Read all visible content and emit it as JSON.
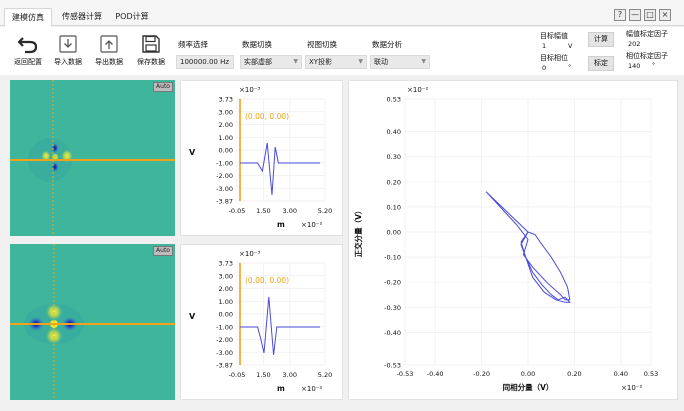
{
  "tabs": [
    {
      "label": "建模仿真",
      "active": true
    },
    {
      "label": "传感器计算",
      "active": false
    },
    {
      "label": "POD计算",
      "active": false
    }
  ],
  "window_buttons": {
    "help": "?",
    "minimize": "—",
    "maximize": "□",
    "close": "×"
  },
  "toolbar": {
    "buttons": [
      {
        "label": "返回配置",
        "icon": "back-arrow-icon"
      },
      {
        "label": "导入数据",
        "icon": "import-icon"
      },
      {
        "label": "导出数据",
        "icon": "export-icon"
      },
      {
        "label": "保存数据",
        "icon": "save-icon"
      }
    ],
    "groups": [
      {
        "label": "频率选择",
        "value": "100000.00 Hz"
      },
      {
        "label": "数据切换",
        "value": "实部虚部"
      },
      {
        "label": "视图切换",
        "value": "XY投影"
      },
      {
        "label": "数据分析",
        "value": "联动"
      }
    ]
  },
  "right_panel": {
    "target_amp_label": "目标幅值",
    "target_amp_value": "1",
    "target_amp_unit": "V",
    "target_phase_label": "目标相位",
    "target_phase_value": "0",
    "target_phase_unit": "°",
    "calc_button": "计算",
    "calibrate_button": "标定",
    "amp_factor_label": "幅值标定因子",
    "amp_factor_value": "202",
    "phase_factor_label": "相位标定因子",
    "phase_factor_value": "140",
    "phase_factor_unit": "°"
  },
  "image_panels": [
    {
      "auto_label": "Auto"
    },
    {
      "auto_label": "Auto"
    }
  ],
  "small_plots": [
    {
      "exponent": "×10⁻³",
      "ylabel": "V",
      "xlabel": "m",
      "x_exponent": "×10⁻²",
      "y_ticks": [
        "3.73",
        "3.00",
        "2.00",
        "1.00",
        "0.00",
        "-1.00",
        "-2.00",
        "-3.00",
        "-3.87"
      ],
      "x_ticks": [
        "-0.05",
        "1.50",
        "3.00",
        "5.20"
      ],
      "annotation": "(0.00, 0.00)"
    },
    {
      "exponent": "×10⁻³",
      "ylabel": "V",
      "xlabel": "m",
      "x_exponent": "×10⁻²",
      "y_ticks": [
        "3.73",
        "3.00",
        "2.00",
        "1.00",
        "0.00",
        "-1.00",
        "-2.00",
        "-3.00",
        "-3.87"
      ],
      "x_ticks": [
        "-0.05",
        "1.50",
        "3.00",
        "5.20"
      ],
      "annotation": "(0.00, 0.00)"
    }
  ],
  "chart_data": {
    "type": "line",
    "y_exponent": "×10⁻²",
    "x_exponent": "×10⁻²",
    "xlabel": "同相分量（V）",
    "ylabel": "正交分量（V）",
    "xlim": [
      -0.53,
      0.53
    ],
    "ylim": [
      -0.53,
      0.53
    ],
    "x_ticks": [
      "-0.53",
      "-0.40",
      "-0.20",
      "0.00",
      "0.20",
      "0.40",
      "0.53"
    ],
    "y_ticks": [
      "0.53",
      "0.40",
      "0.30",
      "0.20",
      "0.10",
      "0.00",
      "-0.10",
      "-0.20",
      "-0.30",
      "-0.40",
      "-0.53"
    ],
    "series": [
      {
        "x": [
          -0.18,
          -0.12,
          -0.05,
          0.0,
          -0.02,
          0.02,
          0.08,
          0.14,
          0.16,
          0.18,
          0.17,
          0.14,
          0.1,
          0.06,
          0.03,
          0.0,
          -0.03,
          -0.01,
          0.02,
          0.06,
          0.1,
          0.13,
          0.16,
          0.18,
          0.16,
          0.12,
          0.07,
          0.02,
          -0.01,
          -0.03,
          0.0,
          -0.18
        ],
        "y": [
          0.16,
          0.1,
          0.03,
          -0.03,
          -0.09,
          -0.14,
          -0.2,
          -0.25,
          -0.27,
          -0.27,
          -0.22,
          -0.16,
          -0.1,
          -0.05,
          -0.01,
          0.0,
          -0.05,
          -0.1,
          -0.16,
          -0.21,
          -0.25,
          -0.27,
          -0.26,
          -0.28,
          -0.28,
          -0.27,
          -0.24,
          -0.18,
          -0.1,
          -0.04,
          0.0,
          0.16
        ]
      }
    ]
  }
}
